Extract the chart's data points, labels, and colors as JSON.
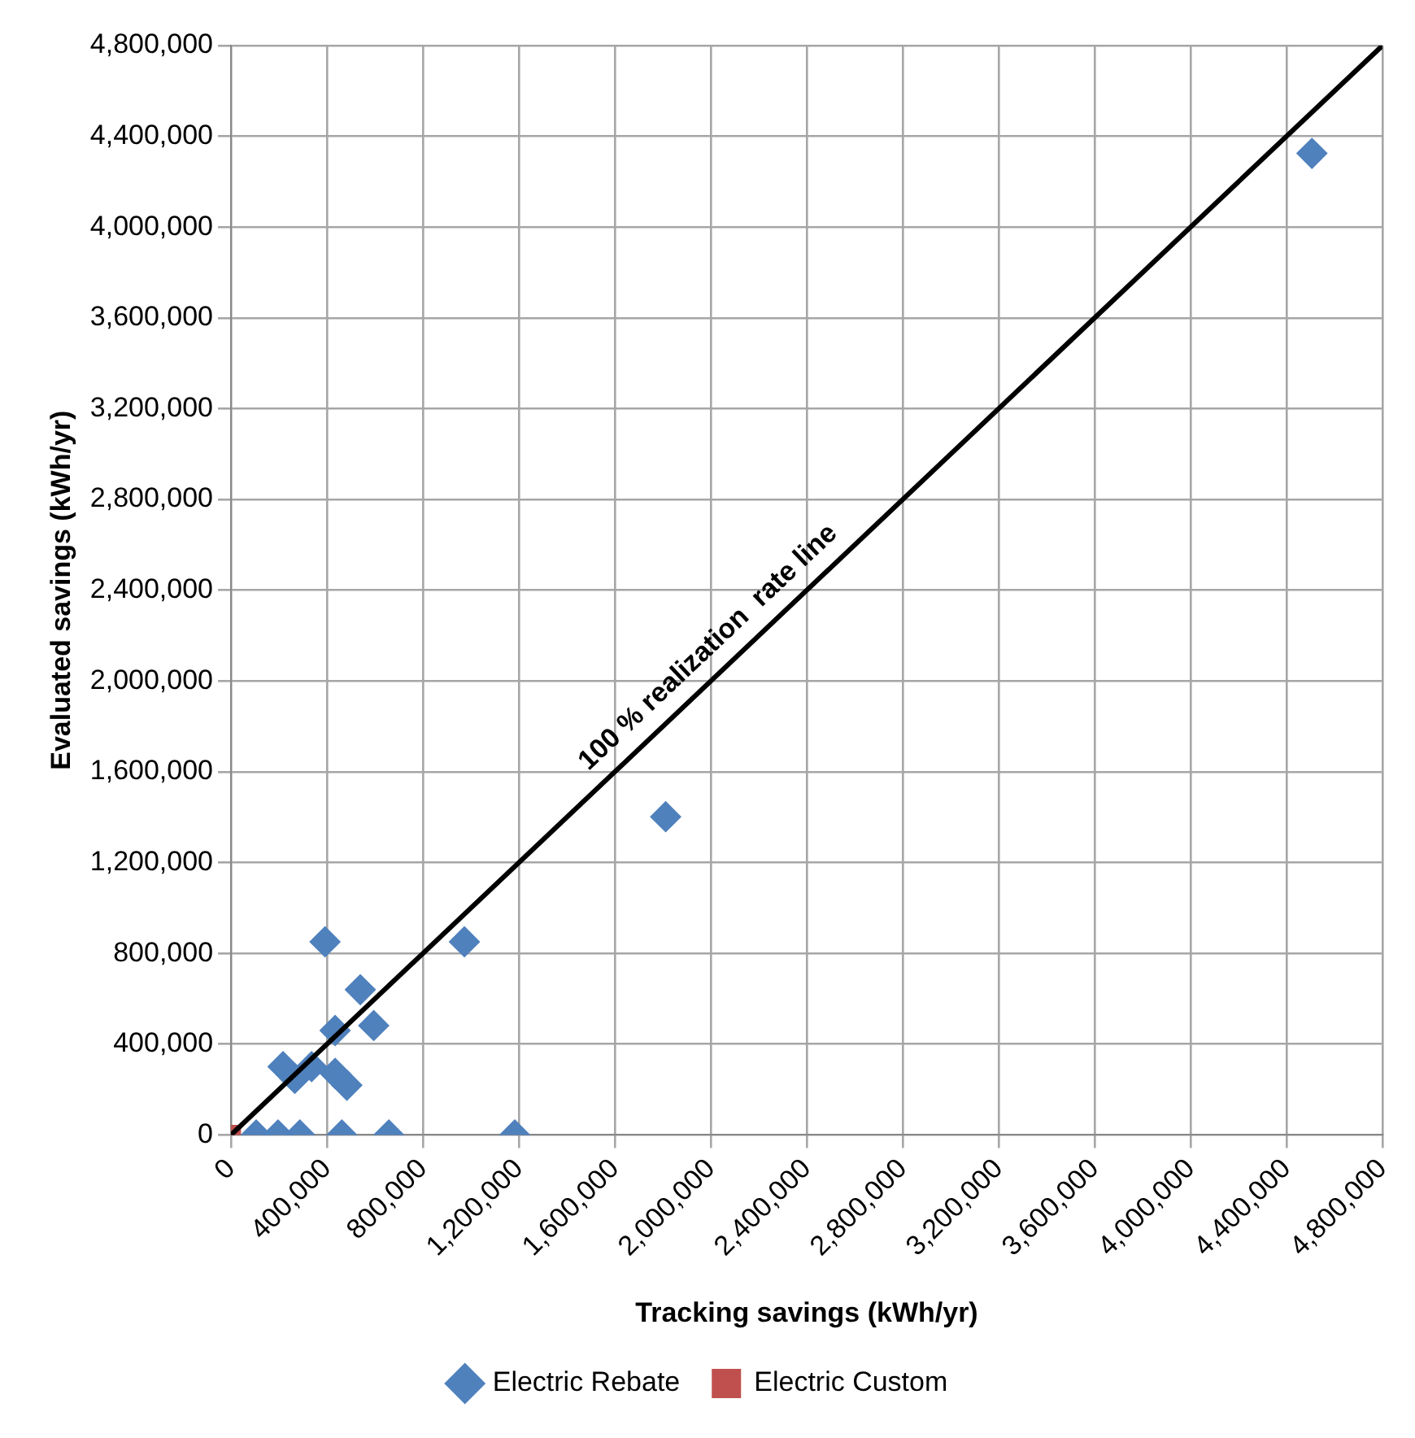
{
  "chart_data": {
    "type": "scatter",
    "xlabel": "Tracking savings (kWh/yr)",
    "ylabel": "Evaluated savings (kWh/yr)",
    "xlim": [
      0,
      4800000
    ],
    "xticks": [
      {
        "value": 0,
        "label": "0"
      },
      {
        "value": 400000,
        "label": "400,000"
      },
      {
        "value": 800000,
        "label": "800,000"
      },
      {
        "value": 1200000,
        "label": "1,200,000"
      },
      {
        "value": 1600000,
        "label": "1,600,000"
      },
      {
        "value": 2000000,
        "label": "2,000,000"
      },
      {
        "value": 2400000,
        "label": "2,400,000"
      },
      {
        "value": 2800000,
        "label": "2,800,000"
      },
      {
        "value": 3200000,
        "label": "3,200,000"
      },
      {
        "value": 3600000,
        "label": "3,600,000"
      },
      {
        "value": 4000000,
        "label": "4,000,000"
      },
      {
        "value": 4400000,
        "label": "4,400,000"
      },
      {
        "value": 4800000,
        "label": "4,800,000"
      }
    ],
    "ylim": [
      0,
      4800000
    ],
    "yticks": [
      {
        "value": 0,
        "label": "0"
      },
      {
        "value": 400000,
        "label": "400,000"
      },
      {
        "value": 800000,
        "label": "800,000"
      },
      {
        "value": 1200000,
        "label": "1,200,000"
      },
      {
        "value": 1600000,
        "label": "1,600,000"
      },
      {
        "value": 2000000,
        "label": "2,000,000"
      },
      {
        "value": 2400000,
        "label": "2,400,000"
      },
      {
        "value": 2800000,
        "label": "2,800,000"
      },
      {
        "value": 3200000,
        "label": "3,200,000"
      },
      {
        "value": 3600000,
        "label": "3,600,000"
      },
      {
        "value": 4000000,
        "label": "4,000,000"
      },
      {
        "value": 4400000,
        "label": "4,400,000"
      },
      {
        "value": 4800000,
        "label": "4,800,000"
      }
    ],
    "grid": true,
    "legend": "bottom",
    "annotations": [
      "100 % realization  rate line"
    ],
    "series": [
      {
        "type": "line",
        "color": "#000000",
        "marker": "none",
        "x": [
          0,
          4800000
        ],
        "values": [
          0,
          4800000
        ]
      },
      {
        "name": "Electric Rebate",
        "color": "#4f81bd",
        "marker": "diamond",
        "x": [
          105000,
          196000,
          287000,
          462000,
          658000,
          1183000,
          392000,
          973000,
          1812000,
          539000,
          595000,
          434000,
          336000,
          217000,
          266000,
          434000,
          483000,
          4506000
        ],
        "values": [
          0,
          0,
          0,
          0,
          0,
          0,
          851000,
          851000,
          1402000,
          640000,
          482000,
          460000,
          301000,
          301000,
          249000,
          271000,
          219000,
          4325000
        ]
      },
      {
        "name": "Electric Custom",
        "color": "#c0504d",
        "marker": "square",
        "x": [
          0
        ],
        "values": [
          0
        ]
      }
    ]
  }
}
